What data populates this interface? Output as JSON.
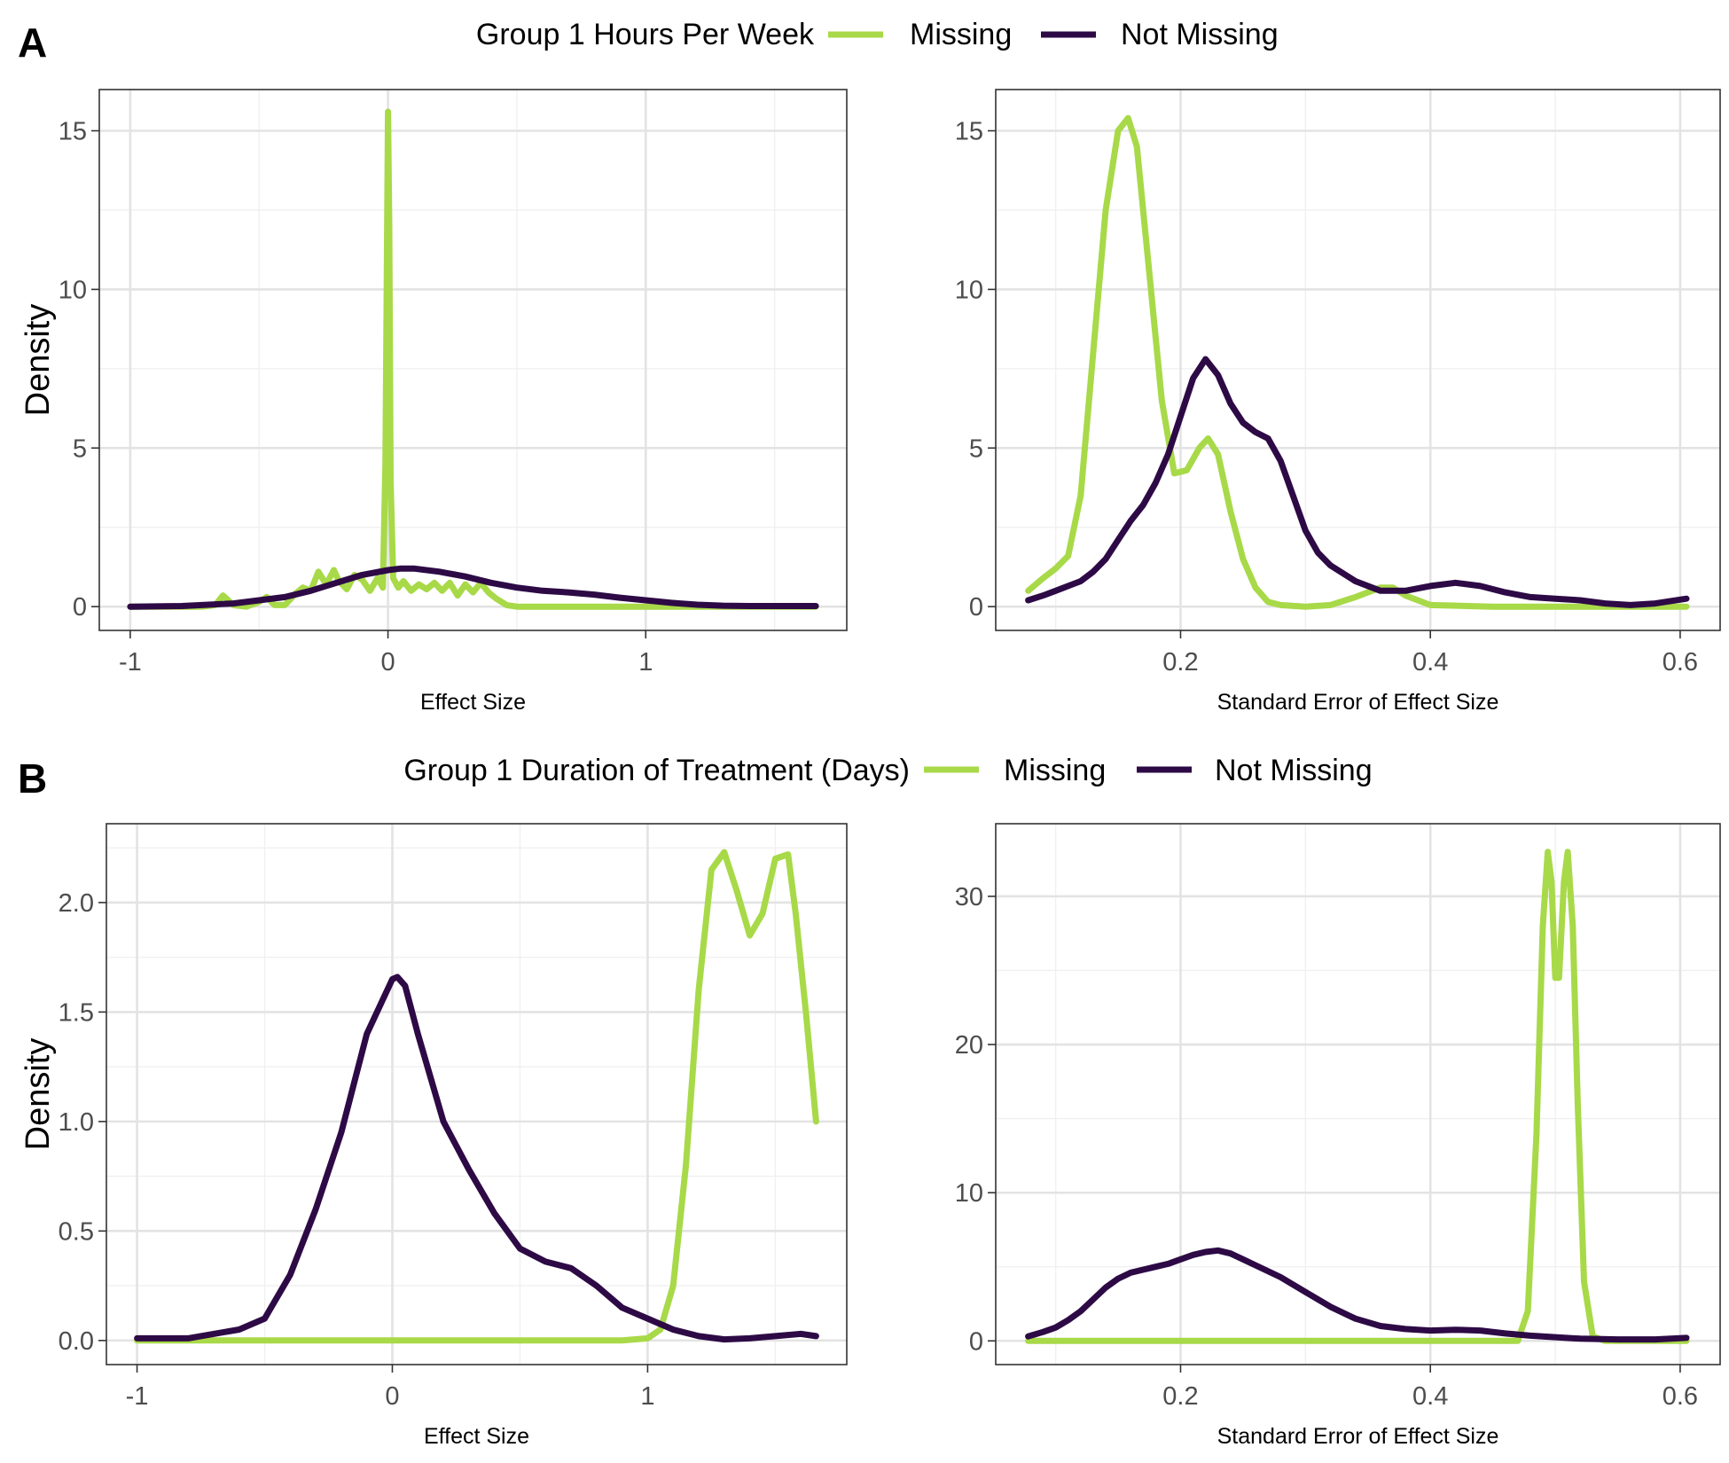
{
  "colors": {
    "missing": "#a8d948",
    "not_missing": "#2d0a45"
  },
  "rows": [
    {
      "letter": "A",
      "legend": {
        "title": "Group 1 Hours Per Week",
        "items": [
          {
            "label": "Missing",
            "color": "#a8d948"
          },
          {
            "label": "Not Missing",
            "color": "#2d0a45"
          }
        ]
      }
    },
    {
      "letter": "B",
      "legend": {
        "title": "Group 1 Duration of Treatment (Days)",
        "items": [
          {
            "label": "Missing",
            "color": "#a8d948"
          },
          {
            "label": "Not Missing",
            "color": "#2d0a45"
          }
        ]
      }
    }
  ],
  "chart_data": [
    {
      "type": "line",
      "panel": "A-left",
      "xlabel": "Effect Size",
      "ylabel": "Density",
      "xlim": [
        -1.12,
        1.78
      ],
      "ylim": [
        -0.75,
        16.3
      ],
      "xticks": [
        -1,
        0,
        1
      ],
      "xtick_labels": [
        "-1",
        "0",
        "1"
      ],
      "yticks": [
        0,
        5,
        10,
        15
      ],
      "ytick_labels": [
        "0",
        "5",
        "10",
        "15"
      ],
      "legend": "top",
      "grid": true,
      "series": [
        {
          "name": "Missing",
          "color": "#a8d948",
          "x": [
            -1.0,
            -0.9,
            -0.8,
            -0.72,
            -0.67,
            -0.64,
            -0.6,
            -0.55,
            -0.5,
            -0.47,
            -0.44,
            -0.4,
            -0.36,
            -0.33,
            -0.3,
            -0.27,
            -0.24,
            -0.21,
            -0.19,
            -0.16,
            -0.13,
            -0.1,
            -0.07,
            -0.04,
            -0.02,
            -0.01,
            0.0,
            0.005,
            0.01,
            0.02,
            0.04,
            0.06,
            0.09,
            0.12,
            0.15,
            0.18,
            0.21,
            0.24,
            0.27,
            0.3,
            0.33,
            0.36,
            0.39,
            0.42,
            0.46,
            0.5,
            0.7,
            1.0,
            1.3,
            1.66
          ],
          "y": [
            0,
            0,
            0,
            0,
            0.05,
            0.35,
            0.05,
            0,
            0.15,
            0.3,
            0.05,
            0.05,
            0.4,
            0.6,
            0.5,
            1.1,
            0.7,
            1.15,
            0.8,
            0.55,
            1.0,
            0.85,
            0.5,
            0.9,
            0.6,
            4.5,
            15.6,
            12.0,
            4.0,
            0.9,
            0.6,
            0.8,
            0.5,
            0.7,
            0.55,
            0.75,
            0.5,
            0.75,
            0.35,
            0.7,
            0.45,
            0.75,
            0.45,
            0.25,
            0.05,
            0,
            0,
            0,
            0,
            0
          ]
        },
        {
          "name": "Not Missing",
          "color": "#2d0a45",
          "x": [
            -1.0,
            -0.8,
            -0.6,
            -0.4,
            -0.3,
            -0.2,
            -0.1,
            0.0,
            0.05,
            0.1,
            0.2,
            0.3,
            0.4,
            0.5,
            0.6,
            0.7,
            0.8,
            0.9,
            1.0,
            1.1,
            1.2,
            1.3,
            1.4,
            1.5,
            1.66
          ],
          "y": [
            0,
            0.02,
            0.1,
            0.3,
            0.5,
            0.75,
            1.0,
            1.15,
            1.2,
            1.2,
            1.1,
            0.95,
            0.75,
            0.6,
            0.5,
            0.45,
            0.38,
            0.28,
            0.2,
            0.12,
            0.06,
            0.03,
            0.02,
            0.02,
            0.02
          ]
        }
      ]
    },
    {
      "type": "line",
      "panel": "A-right",
      "xlabel": "Standard Error of Effect Size",
      "ylabel": "",
      "xlim": [
        0.052,
        0.632
      ],
      "ylim": [
        -0.75,
        16.3
      ],
      "xticks": [
        0.2,
        0.4,
        0.6
      ],
      "xtick_labels": [
        "0.2",
        "0.4",
        "0.6"
      ],
      "yticks": [
        0,
        5,
        10,
        15
      ],
      "ytick_labels": [
        "0",
        "5",
        "10",
        "15"
      ],
      "legend": "top",
      "grid": true,
      "series": [
        {
          "name": "Missing",
          "color": "#a8d948",
          "x": [
            0.078,
            0.09,
            0.1,
            0.11,
            0.12,
            0.13,
            0.14,
            0.15,
            0.158,
            0.165,
            0.175,
            0.185,
            0.195,
            0.205,
            0.215,
            0.222,
            0.23,
            0.24,
            0.25,
            0.26,
            0.27,
            0.28,
            0.3,
            0.32,
            0.34,
            0.36,
            0.37,
            0.38,
            0.4,
            0.45,
            0.5,
            0.55,
            0.605
          ],
          "y": [
            0.5,
            0.9,
            1.2,
            1.6,
            3.5,
            8.0,
            12.5,
            15.0,
            15.4,
            14.5,
            10.5,
            6.5,
            4.2,
            4.3,
            5.0,
            5.3,
            4.8,
            3.0,
            1.5,
            0.6,
            0.15,
            0.05,
            0,
            0.05,
            0.3,
            0.6,
            0.6,
            0.35,
            0.05,
            0,
            0,
            0,
            0
          ]
        },
        {
          "name": "Not Missing",
          "color": "#2d0a45",
          "x": [
            0.078,
            0.09,
            0.1,
            0.11,
            0.12,
            0.13,
            0.14,
            0.15,
            0.16,
            0.17,
            0.18,
            0.19,
            0.2,
            0.21,
            0.22,
            0.23,
            0.24,
            0.25,
            0.26,
            0.27,
            0.28,
            0.29,
            0.3,
            0.31,
            0.32,
            0.34,
            0.36,
            0.38,
            0.4,
            0.42,
            0.44,
            0.46,
            0.48,
            0.5,
            0.52,
            0.54,
            0.56,
            0.58,
            0.605
          ],
          "y": [
            0.2,
            0.35,
            0.5,
            0.65,
            0.8,
            1.1,
            1.5,
            2.1,
            2.7,
            3.2,
            3.9,
            4.8,
            6.0,
            7.2,
            7.8,
            7.3,
            6.4,
            5.8,
            5.5,
            5.3,
            4.6,
            3.5,
            2.4,
            1.7,
            1.3,
            0.8,
            0.5,
            0.5,
            0.65,
            0.75,
            0.65,
            0.45,
            0.3,
            0.25,
            0.2,
            0.1,
            0.05,
            0.1,
            0.25
          ]
        }
      ]
    },
    {
      "type": "line",
      "panel": "B-left",
      "xlabel": "Effect Size",
      "ylabel": "Density",
      "xlim": [
        -1.12,
        1.78
      ],
      "ylim": [
        -0.11,
        2.36
      ],
      "xticks": [
        -1,
        0,
        1
      ],
      "xtick_labels": [
        "-1",
        "0",
        "1"
      ],
      "yticks": [
        0,
        0.5,
        1.0,
        1.5,
        2.0
      ],
      "ytick_labels": [
        "0.0",
        "0.5",
        "1.0",
        "1.5",
        "2.0"
      ],
      "legend": "top",
      "grid": true,
      "series": [
        {
          "name": "Missing",
          "color": "#a8d948",
          "x": [
            -1.0,
            -0.5,
            0.0,
            0.5,
            0.9,
            1.0,
            1.05,
            1.1,
            1.15,
            1.2,
            1.25,
            1.3,
            1.35,
            1.4,
            1.45,
            1.5,
            1.55,
            1.58,
            1.62,
            1.66
          ],
          "y": [
            0,
            0,
            0,
            0,
            0,
            0.01,
            0.05,
            0.25,
            0.8,
            1.6,
            2.15,
            2.23,
            2.05,
            1.85,
            1.95,
            2.2,
            2.22,
            1.95,
            1.5,
            1.0
          ]
        },
        {
          "name": "Not Missing",
          "color": "#2d0a45",
          "x": [
            -1.0,
            -0.9,
            -0.8,
            -0.7,
            -0.6,
            -0.5,
            -0.4,
            -0.3,
            -0.2,
            -0.1,
            0.0,
            0.02,
            0.05,
            0.1,
            0.2,
            0.3,
            0.4,
            0.5,
            0.6,
            0.7,
            0.8,
            0.9,
            1.0,
            1.1,
            1.2,
            1.3,
            1.4,
            1.5,
            1.6,
            1.66
          ],
          "y": [
            0.01,
            0.01,
            0.01,
            0.03,
            0.05,
            0.1,
            0.3,
            0.6,
            0.95,
            1.4,
            1.65,
            1.66,
            1.62,
            1.4,
            1.0,
            0.78,
            0.58,
            0.42,
            0.36,
            0.33,
            0.25,
            0.15,
            0.1,
            0.05,
            0.02,
            0.005,
            0.01,
            0.02,
            0.03,
            0.02
          ]
        }
      ]
    },
    {
      "type": "line",
      "panel": "B-right",
      "xlabel": "Standard Error of Effect Size",
      "ylabel": "",
      "xlim": [
        0.052,
        0.632
      ],
      "ylim": [
        -1.6,
        34.9
      ],
      "xticks": [
        0.2,
        0.4,
        0.6
      ],
      "xtick_labels": [
        "0.2",
        "0.4",
        "0.6"
      ],
      "yticks": [
        0,
        10,
        20,
        30
      ],
      "ytick_labels": [
        "0",
        "10",
        "20",
        "30"
      ],
      "legend": "top",
      "grid": true,
      "series": [
        {
          "name": "Missing",
          "color": "#a8d948",
          "x": [
            0.078,
            0.2,
            0.4,
            0.47,
            0.478,
            0.485,
            0.49,
            0.494,
            0.497,
            0.5,
            0.503,
            0.507,
            0.51,
            0.514,
            0.518,
            0.523,
            0.53,
            0.54,
            0.605
          ],
          "y": [
            0,
            0,
            0,
            0,
            2.0,
            14.0,
            28.0,
            33.0,
            31.0,
            24.5,
            24.5,
            31.0,
            33.0,
            28.0,
            16.0,
            4.0,
            0.3,
            0,
            0
          ]
        },
        {
          "name": "Not Missing",
          "color": "#2d0a45",
          "x": [
            0.078,
            0.09,
            0.1,
            0.11,
            0.12,
            0.13,
            0.14,
            0.15,
            0.16,
            0.17,
            0.18,
            0.19,
            0.2,
            0.21,
            0.22,
            0.23,
            0.24,
            0.25,
            0.26,
            0.28,
            0.3,
            0.32,
            0.34,
            0.36,
            0.38,
            0.4,
            0.42,
            0.44,
            0.46,
            0.48,
            0.5,
            0.52,
            0.55,
            0.58,
            0.605
          ],
          "y": [
            0.3,
            0.6,
            0.9,
            1.4,
            2.0,
            2.8,
            3.6,
            4.2,
            4.6,
            4.8,
            5.0,
            5.2,
            5.5,
            5.8,
            6.0,
            6.1,
            5.9,
            5.5,
            5.1,
            4.3,
            3.3,
            2.3,
            1.5,
            1.0,
            0.8,
            0.7,
            0.75,
            0.7,
            0.5,
            0.35,
            0.25,
            0.15,
            0.1,
            0.1,
            0.2
          ]
        }
      ]
    }
  ]
}
